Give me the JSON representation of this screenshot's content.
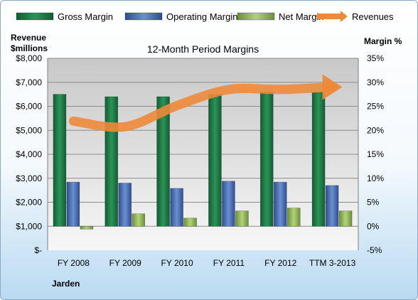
{
  "chart_data": {
    "type": "bar",
    "title": "12-Month Period Margins",
    "company": "Jarden",
    "left_axis_label_line1": "Revenue",
    "left_axis_label_line2": "$millions",
    "right_axis_label": "Margin %",
    "categories": [
      "FY 2008",
      "FY 2009",
      "FY 2010",
      "FY 2011",
      "FY 2012",
      "TTM 3-2013"
    ],
    "left_ticks": [
      "$-",
      "$1,000",
      "$2,000",
      "$3,000",
      "$4,000",
      "$5,000",
      "$6,000",
      "$7,000",
      "$8,000"
    ],
    "right_ticks": [
      "-5%",
      "0%",
      "5%",
      "10%",
      "15%",
      "20%",
      "25%",
      "30%",
      "35%"
    ],
    "ylim_left": [
      0,
      8000
    ],
    "ylim_right": [
      -5,
      35
    ],
    "legend_position": "top",
    "series": [
      {
        "name": "Gross Margin",
        "axis": "right",
        "kind": "bar",
        "color": "#1f7a47",
        "values": [
          27.5,
          27.0,
          27.0,
          27.5,
          28.0,
          28.0
        ]
      },
      {
        "name": "Operating Margin",
        "axis": "right",
        "kind": "bar",
        "color": "#4a6fb5",
        "values": [
          9.2,
          9.0,
          7.9,
          9.4,
          9.2,
          8.5
        ]
      },
      {
        "name": "Net Margin",
        "axis": "right",
        "kind": "bar",
        "color": "#8fb35a",
        "values": [
          -0.6,
          2.6,
          1.7,
          3.2,
          3.8,
          3.2
        ]
      },
      {
        "name": "Revenues",
        "axis": "left",
        "kind": "line",
        "color": "#ed8a3a",
        "values": [
          5380,
          5150,
          6030,
          6700,
          6700,
          6800
        ]
      }
    ]
  }
}
